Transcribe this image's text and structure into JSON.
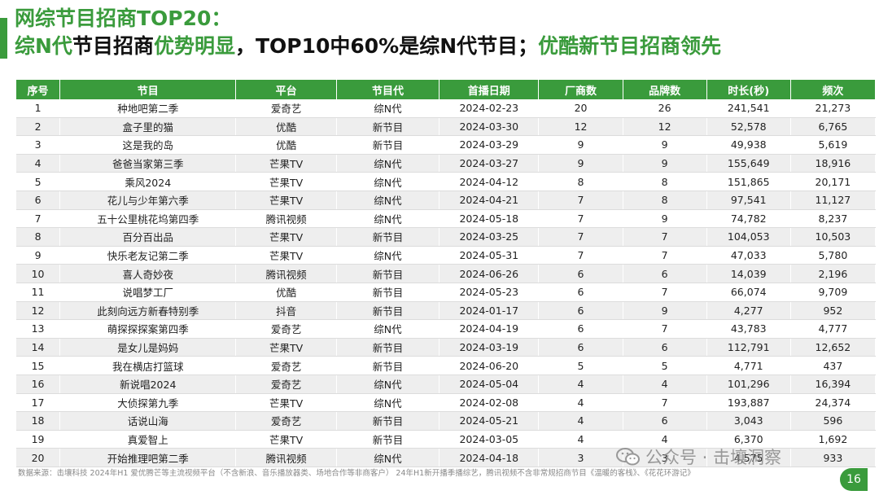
{
  "title": {
    "line1": "网综节目招商TOP20：",
    "line2_part1": "综N代",
    "line2_part2": "节目招商",
    "line2_part3": "优势明显",
    "line2_part4": "，TOP10中60%是综N代节目；",
    "line2_part5": "优酷新节目招商领先"
  },
  "table": {
    "headers": [
      "序号",
      "节目",
      "平台",
      "节目代",
      "首播日期",
      "厂商数",
      "品牌数",
      "时长(秒)",
      "频次"
    ],
    "rows": [
      [
        "1",
        "种地吧第二季",
        "爱奇艺",
        "综N代",
        "2024-02-23",
        "20",
        "26",
        "241,541",
        "21,273"
      ],
      [
        "2",
        "盒子里的猫",
        "优酷",
        "新节目",
        "2024-03-30",
        "12",
        "12",
        "52,578",
        "6,765"
      ],
      [
        "3",
        "这是我的岛",
        "优酷",
        "新节目",
        "2024-03-29",
        "9",
        "9",
        "49,938",
        "5,619"
      ],
      [
        "4",
        "爸爸当家第三季",
        "芒果TV",
        "综N代",
        "2024-03-27",
        "9",
        "9",
        "155,649",
        "18,916"
      ],
      [
        "5",
        "乘风2024",
        "芒果TV",
        "综N代",
        "2024-04-12",
        "8",
        "8",
        "151,865",
        "20,171"
      ],
      [
        "6",
        "花儿与少年第六季",
        "芒果TV",
        "综N代",
        "2024-04-21",
        "7",
        "8",
        "97,541",
        "11,127"
      ],
      [
        "7",
        "五十公里桃花坞第四季",
        "腾讯视频",
        "综N代",
        "2024-05-18",
        "7",
        "9",
        "74,782",
        "8,237"
      ],
      [
        "8",
        "百分百出品",
        "芒果TV",
        "新节目",
        "2024-03-25",
        "7",
        "7",
        "104,053",
        "10,503"
      ],
      [
        "9",
        "快乐老友记第二季",
        "芒果TV",
        "综N代",
        "2024-05-31",
        "7",
        "7",
        "47,033",
        "5,780"
      ],
      [
        "10",
        "喜人奇妙夜",
        "腾讯视频",
        "新节目",
        "2024-06-26",
        "6",
        "6",
        "14,039",
        "2,196"
      ],
      [
        "11",
        "说唱梦工厂",
        "优酷",
        "新节目",
        "2024-05-23",
        "6",
        "7",
        "66,074",
        "9,709"
      ],
      [
        "12",
        "此刻向远方新春特别季",
        "抖音",
        "新节目",
        "2024-01-17",
        "6",
        "9",
        "4,277",
        "952"
      ],
      [
        "13",
        "萌探探探案第四季",
        "爱奇艺",
        "综N代",
        "2024-04-19",
        "6",
        "7",
        "43,783",
        "4,777"
      ],
      [
        "14",
        "是女儿是妈妈",
        "芒果TV",
        "新节目",
        "2024-03-19",
        "6",
        "6",
        "112,791",
        "12,652"
      ],
      [
        "15",
        "我在横店打篮球",
        "爱奇艺",
        "新节目",
        "2024-06-20",
        "5",
        "5",
        "4,771",
        "437"
      ],
      [
        "16",
        "新说唱2024",
        "爱奇艺",
        "综N代",
        "2024-05-04",
        "4",
        "4",
        "101,296",
        "16,394"
      ],
      [
        "17",
        "大侦探第九季",
        "芒果TV",
        "综N代",
        "2024-02-08",
        "4",
        "7",
        "193,887",
        "24,374"
      ],
      [
        "18",
        "话说山海",
        "爱奇艺",
        "新节目",
        "2024-05-21",
        "4",
        "6",
        "3,043",
        "596"
      ],
      [
        "19",
        "真爱智上",
        "芒果TV",
        "新节目",
        "2024-03-05",
        "4",
        "4",
        "6,370",
        "1,692"
      ],
      [
        "20",
        "开始推理吧第二季",
        "腾讯视频",
        "综N代",
        "2024-04-18",
        "3",
        "3",
        "4,575",
        "933"
      ]
    ]
  },
  "footer": "数据来源：击壤科技 2024年H1      爱优腾芒等主流视频平台（不含新浪、音乐播放器类、场地合作等非商客户）  24年H1新开播季播综艺，腾讯视频不含非常规招商节目《温暖的客栈》、《花花环游记》",
  "watermark": "公众号 · 击壤洞察",
  "page_number": "16",
  "colors": {
    "accent": "#3a9b3c",
    "row_alt": "#eeeeee"
  }
}
